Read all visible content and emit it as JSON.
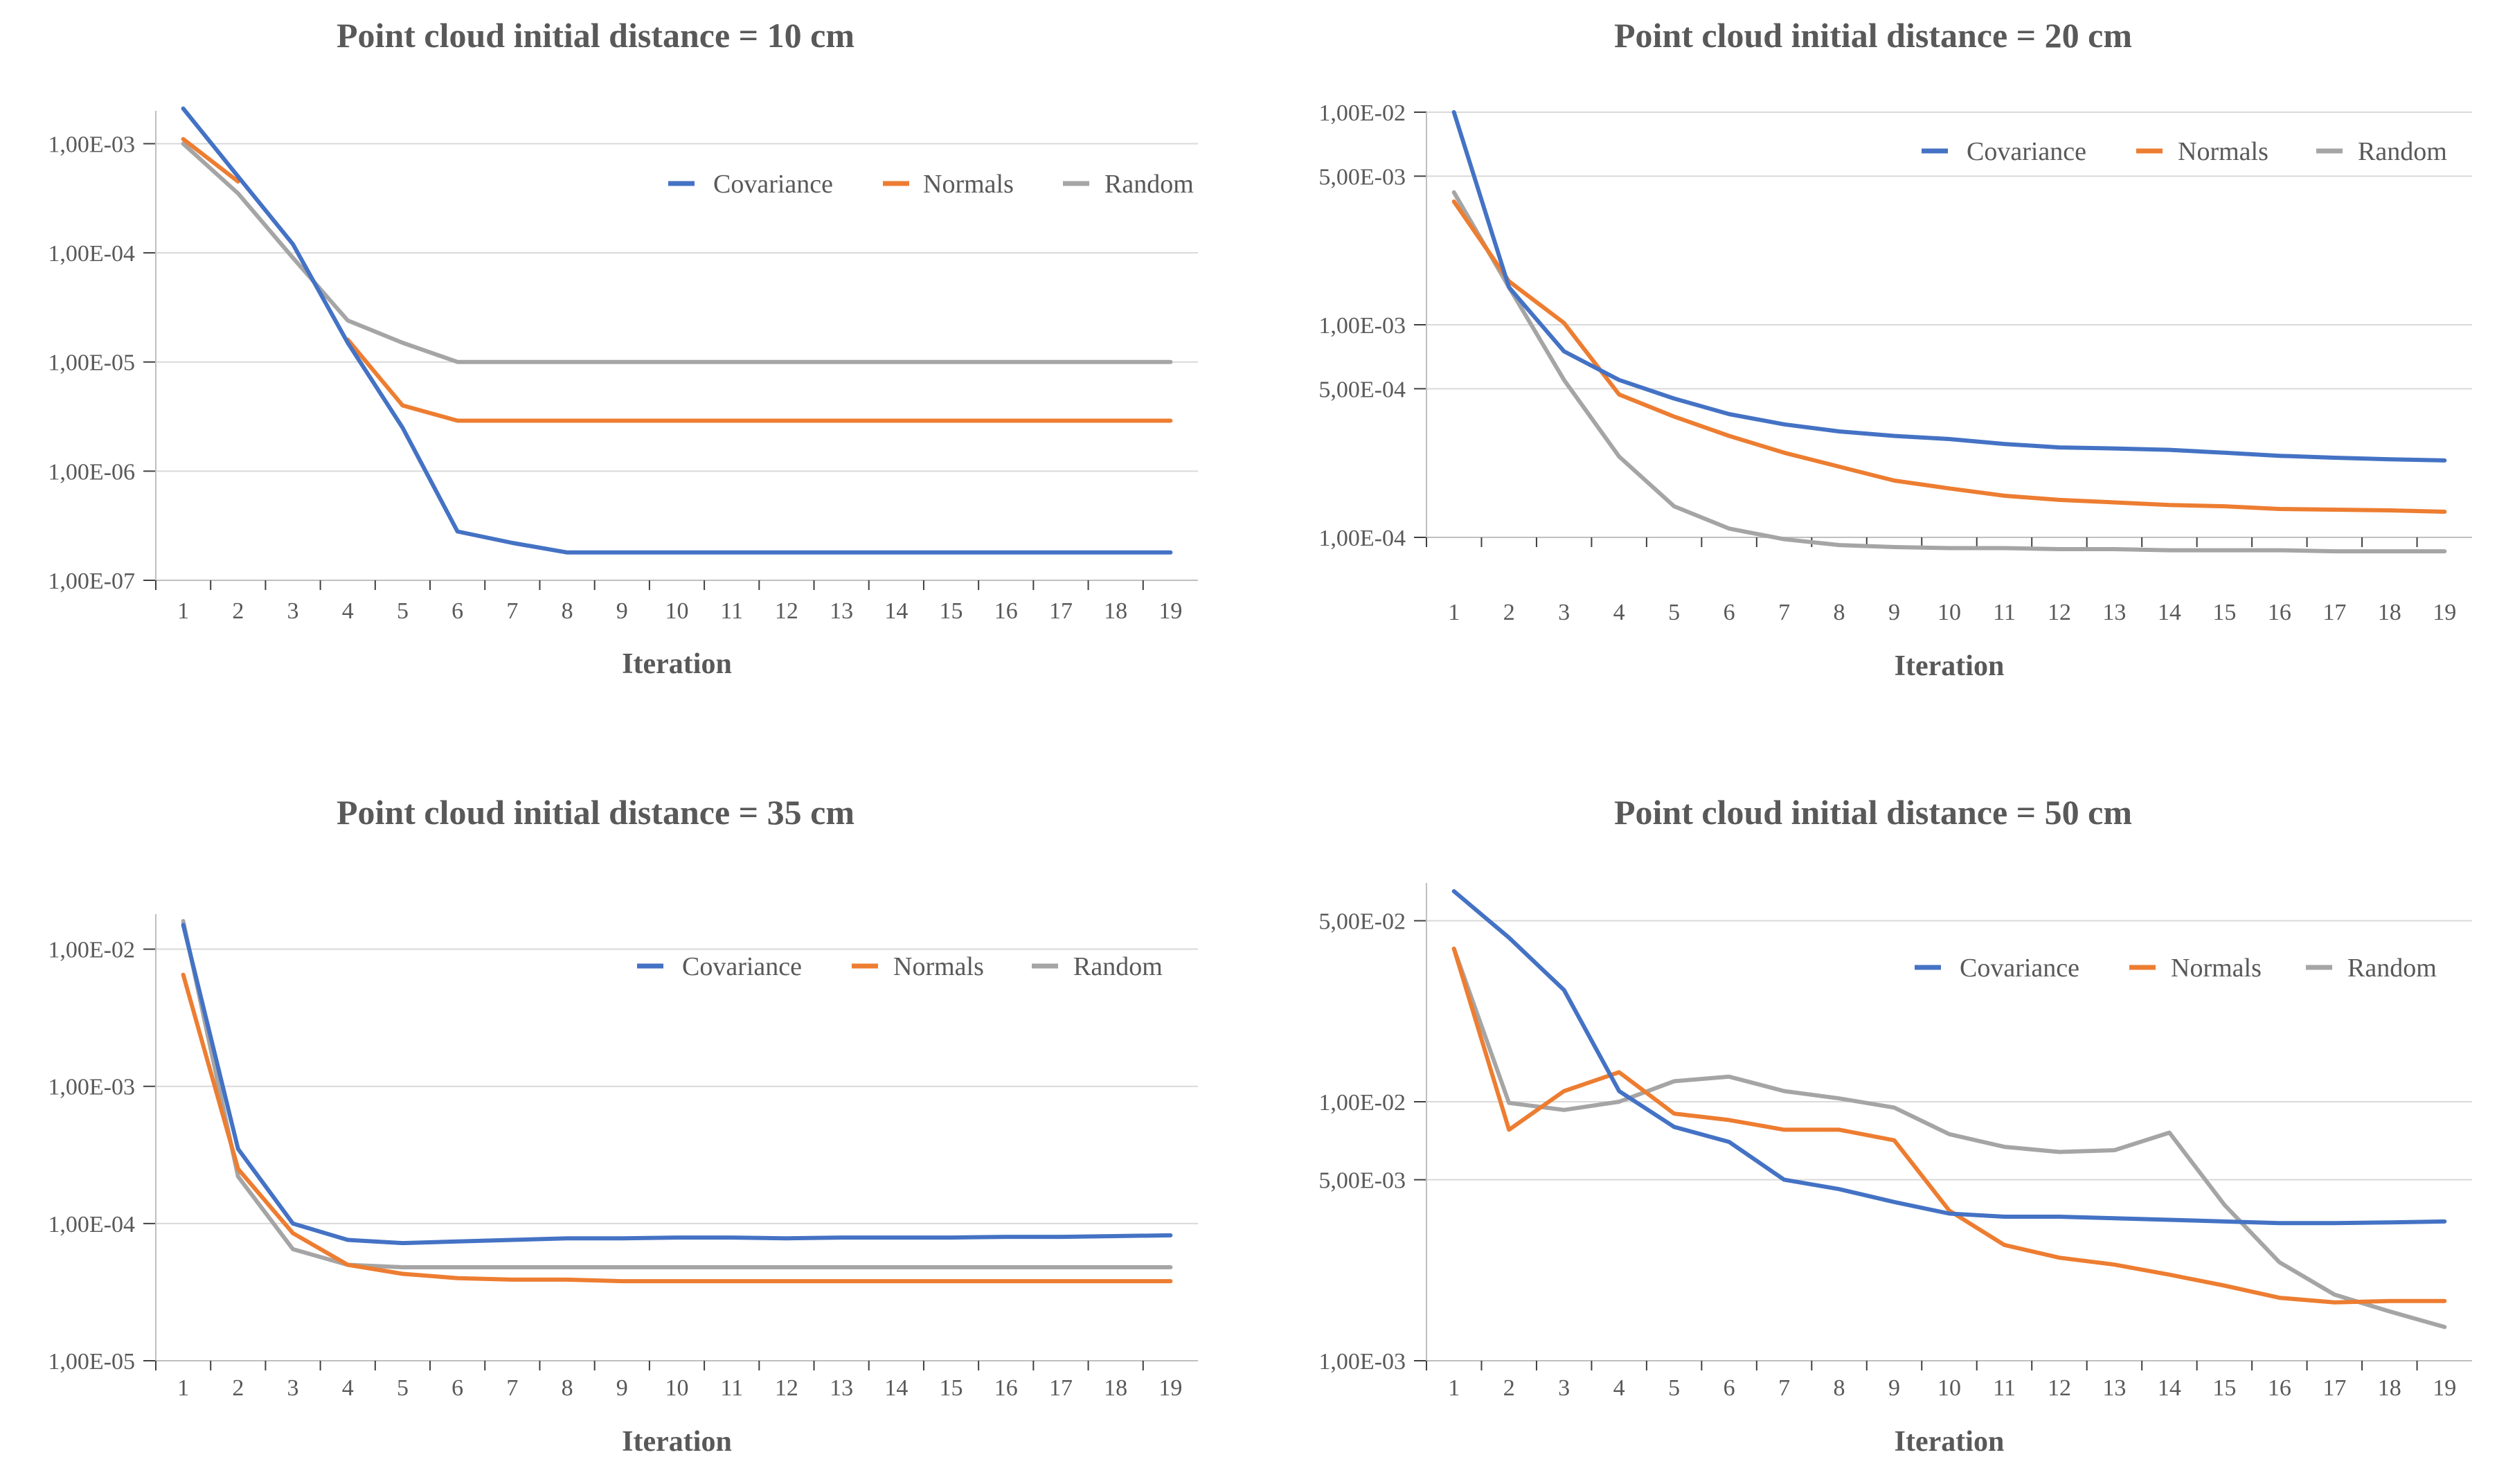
{
  "colors": {
    "Covariance": "#4472c4",
    "Normals": "#ed7d31",
    "Random": "#a5a5a5"
  },
  "chart_data": [
    {
      "type": "line",
      "title": "Point cloud initial distance = 10 cm",
      "xlabel": "Iteration",
      "ylabel": "",
      "yscale": "log",
      "ylim": [
        1e-07,
        0.002
      ],
      "categories": [
        "1",
        "2",
        "3",
        "4",
        "5",
        "6",
        "7",
        "8",
        "9",
        "10",
        "11",
        "12",
        "13",
        "14",
        "15",
        "16",
        "17",
        "18",
        "19"
      ],
      "yticks": [
        1e-07,
        1e-06,
        1e-05,
        0.0001,
        0.001
      ],
      "ytick_labels": [
        "1,00E-07",
        "1,00E-06",
        "1,00E-05",
        "1,00E-04",
        "1,00E-03"
      ],
      "legend": "top-right",
      "legend_labels": [
        "Covariance",
        "Normals",
        "Random"
      ],
      "series": [
        {
          "name": "Covariance",
          "values": [
            0.0021,
            0.0005,
            0.00012,
            1.5e-05,
            2.5e-06,
            2.8e-07,
            2.2e-07,
            1.8e-07,
            1.8e-07,
            1.8e-07,
            1.8e-07,
            1.8e-07,
            1.8e-07,
            1.8e-07,
            1.8e-07,
            1.8e-07,
            1.8e-07,
            1.8e-07,
            1.8e-07
          ]
        },
        {
          "name": "Normals",
          "values": [
            0.0011,
            0.00045,
            null,
            1.6e-05,
            4e-06,
            2.9e-06,
            2.9e-06,
            2.9e-06,
            2.9e-06,
            2.9e-06,
            2.9e-06,
            2.9e-06,
            2.9e-06,
            2.9e-06,
            2.9e-06,
            2.9e-06,
            2.9e-06,
            2.9e-06,
            2.9e-06
          ]
        },
        {
          "name": "Random",
          "values": [
            0.001,
            0.00035,
            9e-05,
            2.4e-05,
            1.5e-05,
            1e-05,
            1e-05,
            1e-05,
            1e-05,
            1e-05,
            1e-05,
            1e-05,
            1e-05,
            1e-05,
            1e-05,
            1e-05,
            1e-05,
            1e-05,
            1e-05
          ]
        }
      ]
    },
    {
      "type": "line",
      "title": "Point cloud initial distance = 20 cm",
      "xlabel": "Iteration",
      "ylabel": "",
      "yscale": "log",
      "ylim": [
        0.0001,
        0.01
      ],
      "categories": [
        "1",
        "2",
        "3",
        "4",
        "5",
        "6",
        "7",
        "8",
        "9",
        "10",
        "11",
        "12",
        "13",
        "14",
        "15",
        "16",
        "17",
        "18",
        "19"
      ],
      "yticks": [
        0.0001,
        0.0005,
        0.001,
        0.005,
        0.01
      ],
      "ytick_labels": [
        "1,00E-04",
        "5,00E-04",
        "1,00E-03",
        "5,00E-03",
        "1,00E-02"
      ],
      "legend": "top-right",
      "legend_labels": [
        "Covariance",
        "Normals",
        "Random"
      ],
      "series": [
        {
          "name": "Covariance",
          "values": [
            0.01,
            0.0015,
            0.00075,
            0.00055,
            0.00045,
            0.00038,
            0.00034,
            0.000315,
            0.0003,
            0.00029,
            0.000275,
            0.000265,
            0.000262,
            0.000258,
            0.00025,
            0.000242,
            0.000237,
            0.000233,
            0.00023
          ]
        },
        {
          "name": "Normals",
          "values": [
            0.0038,
            0.0016,
            0.00102,
            0.00047,
            0.00037,
            0.0003,
            0.00025,
            0.000215,
            0.000185,
            0.00017,
            0.000157,
            0.00015,
            0.000146,
            0.000142,
            0.00014,
            0.000136,
            0.000135,
            0.000134,
            0.000132
          ]
        },
        {
          "name": "Random",
          "values": [
            0.0042,
            0.0015,
            0.00055,
            0.00024,
            0.00014,
            0.00011,
            9.8e-05,
            9.2e-05,
            9e-05,
            8.9e-05,
            8.9e-05,
            8.8e-05,
            8.8e-05,
            8.7e-05,
            8.7e-05,
            8.7e-05,
            8.6e-05,
            8.6e-05,
            8.6e-05
          ]
        }
      ]
    },
    {
      "type": "line",
      "title": "Point cloud initial distance = 35 cm",
      "xlabel": "Iteration",
      "ylabel": "",
      "yscale": "log",
      "ylim": [
        1e-05,
        0.018
      ],
      "categories": [
        "1",
        "2",
        "3",
        "4",
        "5",
        "6",
        "7",
        "8",
        "9",
        "10",
        "11",
        "12",
        "13",
        "14",
        "15",
        "16",
        "17",
        "18",
        "19"
      ],
      "yticks": [
        1e-05,
        0.0001,
        0.001,
        0.01
      ],
      "ytick_labels": [
        "1,00E-05",
        "1,00E-04",
        "1,00E-03",
        "1,00E-02"
      ],
      "legend": "top-right",
      "legend_labels": [
        "Covariance",
        "Normals",
        "Random"
      ],
      "series": [
        {
          "name": "Covariance",
          "values": [
            0.015,
            0.00035,
            0.0001,
            7.6e-05,
            7.2e-05,
            7.4e-05,
            7.6e-05,
            7.8e-05,
            7.8e-05,
            7.9e-05,
            7.9e-05,
            7.8e-05,
            7.9e-05,
            7.9e-05,
            7.9e-05,
            8e-05,
            8e-05,
            8.1e-05,
            8.2e-05
          ]
        },
        {
          "name": "Normals",
          "values": [
            0.0065,
            0.00025,
            8.5e-05,
            5e-05,
            4.3e-05,
            4e-05,
            3.9e-05,
            3.9e-05,
            3.8e-05,
            3.8e-05,
            3.8e-05,
            3.8e-05,
            3.8e-05,
            3.8e-05,
            3.8e-05,
            3.8e-05,
            3.8e-05,
            3.8e-05,
            3.8e-05
          ]
        },
        {
          "name": "Random",
          "values": [
            0.016,
            0.00022,
            6.5e-05,
            5e-05,
            4.8e-05,
            4.8e-05,
            4.8e-05,
            4.8e-05,
            4.8e-05,
            4.8e-05,
            4.8e-05,
            4.8e-05,
            4.8e-05,
            4.8e-05,
            4.8e-05,
            4.8e-05,
            4.8e-05,
            4.8e-05,
            4.8e-05
          ]
        }
      ]
    },
    {
      "type": "line",
      "title": "Point cloud initial distance = 50 cm",
      "xlabel": "Iteration",
      "ylabel": "",
      "yscale": "log",
      "ylim": [
        0.001,
        0.07
      ],
      "categories": [
        "1",
        "2",
        "3",
        "4",
        "5",
        "6",
        "7",
        "8",
        "9",
        "10",
        "11",
        "12",
        "13",
        "14",
        "15",
        "16",
        "17",
        "18",
        "19"
      ],
      "yticks": [
        0.001,
        0.005,
        0.01,
        0.05
      ],
      "ytick_labels": [
        "1,00E-03",
        "5,00E-03",
        "1,00E-02",
        "5,00E-02"
      ],
      "legend": "top-right",
      "legend_labels": [
        "Covariance",
        "Normals",
        "Random"
      ],
      "series": [
        {
          "name": "Covariance",
          "values": [
            0.065,
            0.043,
            0.027,
            0.011,
            0.008,
            0.007,
            0.005,
            0.0046,
            0.0041,
            0.0037,
            0.0036,
            0.0036,
            0.00355,
            0.0035,
            0.00345,
            0.0034,
            0.0034,
            0.00342,
            0.00345
          ]
        },
        {
          "name": "Normals",
          "values": [
            0.039,
            0.0078,
            0.011,
            0.013,
            0.009,
            0.0085,
            0.0078,
            0.0078,
            0.0071,
            0.0038,
            0.0028,
            0.0025,
            0.00235,
            0.00215,
            0.00195,
            0.00175,
            0.00168,
            0.0017,
            0.0017
          ]
        },
        {
          "name": "Random",
          "values": [
            0.039,
            0.0099,
            0.0093,
            0.01,
            0.012,
            0.0125,
            0.011,
            0.0103,
            0.0095,
            0.0075,
            0.0067,
            0.0064,
            0.0065,
            0.0076,
            0.004,
            0.0024,
            0.0018,
            0.00155,
            0.00135
          ]
        }
      ]
    }
  ]
}
